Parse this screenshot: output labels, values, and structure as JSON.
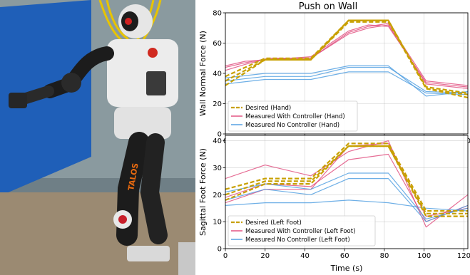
{
  "photo": {
    "description_hidden": "",
    "logo_text": "TALOS"
  },
  "figure_title": "Push on Wall",
  "chart_data": [
    {
      "type": "line",
      "title": "Push on Wall",
      "xlabel": "",
      "ylabel": "Wall Normal Force (N)",
      "xlim": [
        0,
        122
      ],
      "ylim": [
        0,
        80
      ],
      "xticks": [
        0,
        20,
        40,
        60,
        80,
        100,
        120
      ],
      "yticks": [
        0,
        20,
        40,
        60,
        80
      ],
      "grid": true,
      "legend_position": "lower-left",
      "series": [
        {
          "name": "Desired (Hand)",
          "style": "dashed",
          "color": "#c8a000",
          "lines": [
            {
              "x": [
                0,
                20,
                43,
                62,
                82,
                101,
                122
              ],
              "y": [
                32,
                49,
                49,
                74,
                74,
                30,
                24
              ]
            },
            {
              "x": [
                0,
                20,
                43,
                62,
                82,
                101,
                122
              ],
              "y": [
                35,
                49,
                49,
                75,
                75,
                30,
                26
              ]
            },
            {
              "x": [
                0,
                20,
                43,
                62,
                82,
                101,
                122
              ],
              "y": [
                38,
                50,
                50,
                75,
                75,
                31,
                27
              ]
            }
          ]
        },
        {
          "name": "Measured With Controller (Hand)",
          "style": "solid",
          "color": "#e0487a",
          "lines": [
            {
              "x": [
                0,
                10,
                22,
                43,
                62,
                72,
                82,
                101,
                122
              ],
              "y": [
                42,
                46,
                50,
                50,
                66,
                70,
                72,
                33,
                30
              ]
            },
            {
              "x": [
                0,
                10,
                22,
                43,
                62,
                72,
                82,
                101,
                122
              ],
              "y": [
                44,
                47,
                50,
                50,
                67,
                71,
                73,
                35,
                32
              ]
            },
            {
              "x": [
                0,
                10,
                22,
                43,
                62,
                72,
                82,
                101,
                122
              ],
              "y": [
                45,
                48,
                49,
                51,
                68,
                72,
                71,
                34,
                31
              ]
            }
          ]
        },
        {
          "name": "Measured No Controller (Hand)",
          "style": "solid",
          "color": "#4a9be0",
          "lines": [
            {
              "x": [
                0,
                20,
                43,
                62,
                82,
                101,
                122
              ],
              "y": [
                33,
                36,
                36,
                41,
                41,
                27,
                26
              ]
            },
            {
              "x": [
                0,
                20,
                43,
                62,
                82,
                101,
                122
              ],
              "y": [
                35,
                38,
                38,
                44,
                44,
                28,
                27
              ]
            },
            {
              "x": [
                0,
                20,
                43,
                62,
                82,
                101,
                122
              ],
              "y": [
                37,
                40,
                40,
                45,
                45,
                25,
                28
              ]
            }
          ]
        }
      ]
    },
    {
      "type": "line",
      "title": "",
      "xlabel": "Time (s)",
      "ylabel": "Sagittal Foot Force (N)",
      "xlim": [
        0,
        122
      ],
      "ylim": [
        0,
        42
      ],
      "xticks": [
        0,
        20,
        40,
        60,
        80,
        100,
        120
      ],
      "yticks": [
        0,
        10,
        20,
        30,
        40
      ],
      "grid": true,
      "legend_position": "lower-left",
      "series": [
        {
          "name": "Desired (Left Foot)",
          "style": "dashed",
          "color": "#c8a000",
          "lines": [
            {
              "x": [
                0,
                20,
                43,
                62,
                82,
                101,
                122
              ],
              "y": [
                18,
                24,
                24,
                38,
                38,
                12,
                12
              ]
            },
            {
              "x": [
                0,
                20,
                43,
                62,
                82,
                101,
                122
              ],
              "y": [
                20,
                25,
                25,
                38,
                38,
                13,
                13
              ]
            },
            {
              "x": [
                0,
                20,
                43,
                62,
                82,
                101,
                122
              ],
              "y": [
                22,
                26,
                26,
                39,
                39,
                14,
                14
              ]
            }
          ]
        },
        {
          "name": "Measured With Controller (Left Foot)",
          "style": "solid",
          "color": "#e0487a",
          "lines": [
            {
              "x": [
                0,
                20,
                43,
                62,
                82,
                101,
                122
              ],
              "y": [
                26,
                31,
                27,
                36,
                40,
                8,
                20
              ]
            },
            {
              "x": [
                0,
                20,
                43,
                62,
                82,
                101,
                122
              ],
              "y": [
                19,
                24,
                23,
                33,
                35,
                10,
                16
              ]
            },
            {
              "x": [
                0,
                20,
                43,
                62,
                82,
                101,
                122
              ],
              "y": [
                17,
                22,
                22,
                38,
                39,
                12,
                15
              ]
            }
          ]
        },
        {
          "name": "Measured No Controller (Left Foot)",
          "style": "solid",
          "color": "#4a9be0",
          "lines": [
            {
              "x": [
                0,
                20,
                43,
                62,
                82,
                101,
                122
              ],
              "y": [
                16,
                17,
                17,
                18,
                17,
                15,
                14
              ]
            },
            {
              "x": [
                0,
                20,
                43,
                62,
                82,
                101,
                122
              ],
              "y": [
                21,
                24,
                22,
                28,
                28,
                11,
                15
              ]
            },
            {
              "x": [
                0,
                20,
                43,
                62,
                82,
                101,
                122
              ],
              "y": [
                18,
                22,
                20,
                26,
                26,
                10,
                16
              ]
            }
          ]
        }
      ]
    }
  ]
}
